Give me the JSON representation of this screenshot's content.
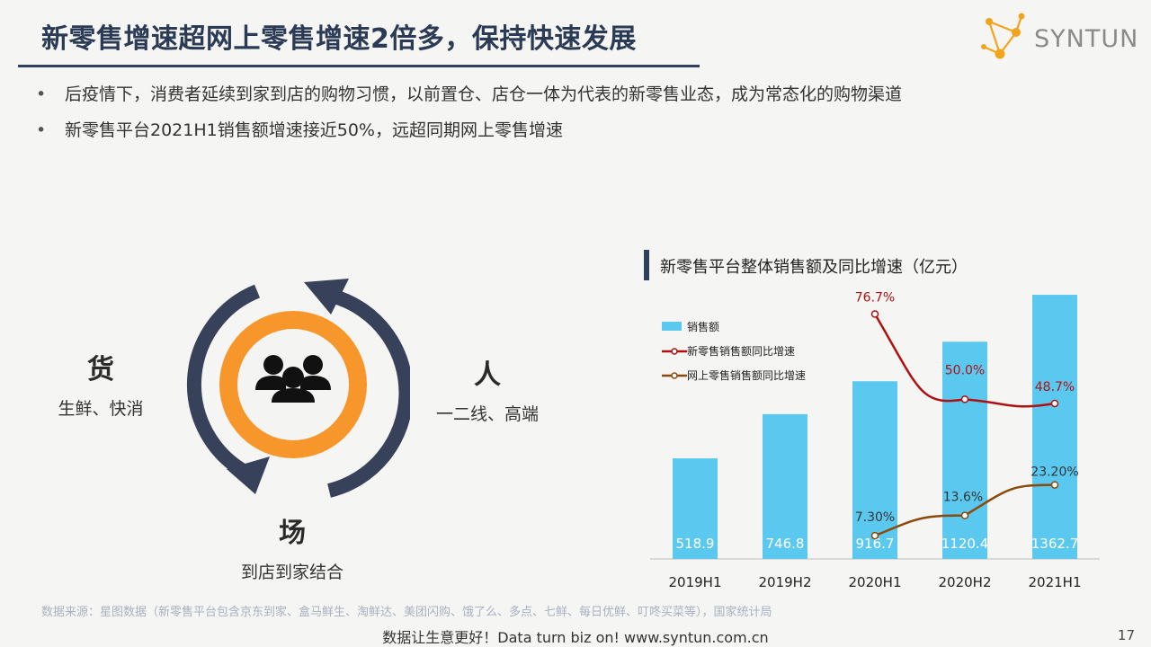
{
  "title": "新零售增速超网上零售增速2倍多，保持快速发展",
  "logo": {
    "text": "SYNTUN",
    "icon": "molecule-logo-icon"
  },
  "bullets": [
    "后疫情下，消费者延续到家到店的购物习惯，以前置仓、店仓一体为代表的新零售业态，成为常态化的购物渠道",
    "新零售平台2021H1销售额增速接近50%，远超同期网上零售增速"
  ],
  "cycle": {
    "icon": "people-group-icon",
    "colors": {
      "ring": "#f7962a",
      "inner": "#f4f4f2",
      "arrow": "#37415a"
    },
    "goods": {
      "title": "货",
      "desc": "生鲜、快消"
    },
    "people": {
      "title": "人",
      "desc": "一二线、高端"
    },
    "venue": {
      "title": "场",
      "desc": "到店到家结合"
    }
  },
  "chart_data": {
    "type": "bar",
    "title": "新零售平台整体销售额及同比增速（亿元）",
    "categories": [
      "2019H1",
      "2019H2",
      "2020H1",
      "2020H2",
      "2021H1"
    ],
    "series": [
      {
        "name": "销售额",
        "type": "bar",
        "color": "#5bc8f0",
        "values": [
          518.9,
          746.8,
          916.7,
          1120.4,
          1362.7
        ],
        "labels": [
          "518.9",
          "746.8",
          "916.7",
          "1120.4",
          "1362.7"
        ]
      },
      {
        "name": "新零售销售额同比增速",
        "type": "line",
        "color": "#b01010",
        "values": [
          null,
          null,
          76.7,
          50.0,
          48.7
        ],
        "labels": [
          "",
          "",
          "76.7%",
          "50.0%",
          "48.7%"
        ]
      },
      {
        "name": "网上零售销售额同比增速",
        "type": "line",
        "color": "#8b4a0c",
        "values": [
          null,
          null,
          7.3,
          13.6,
          23.2
        ],
        "labels": [
          "",
          "",
          "7.30%",
          "13.6%",
          "23.20%"
        ]
      }
    ],
    "ylim": [
      0,
      1400
    ],
    "y2lim": [
      0,
      85
    ],
    "legend": "top-left",
    "grid": false
  },
  "source": "数据来源：星图数据（新零售平台包含京东到家、盒马鲜生、淘鲜达、美团闪购、饿了么、多点、七鲜、每日优鲜、叮咚买菜等），国家统计局",
  "footer": "数据让生意更好！Data turn biz on!  www.syntun.com.cn",
  "page_number": "17"
}
